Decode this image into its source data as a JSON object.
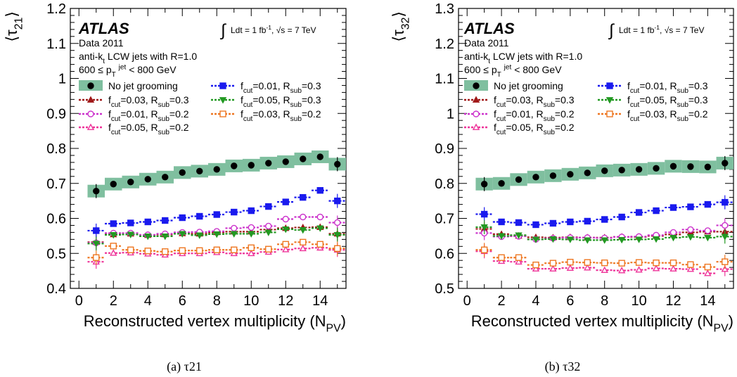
{
  "chart_data": [
    {
      "type": "line",
      "title": "",
      "caption": "(a) τ21",
      "ylabel": "⟨τ21⟩",
      "xlabel": "Reconstructed vertex multiplicity (NPV)",
      "xlim": [
        -0.5,
        15.5
      ],
      "ylim": [
        0.4,
        1.2
      ],
      "xticks": [
        "0",
        "2",
        "4",
        "6",
        "8",
        "10",
        "12",
        "14"
      ],
      "yticks": [
        "0.4",
        "0.5",
        "0.6",
        "0.7",
        "0.8",
        "0.9",
        "1",
        "1.1",
        "1.2"
      ],
      "annotations": {
        "atlas": "ATLAS",
        "data": "Data 2011",
        "jets": "anti-kt LCW jets with R=1.0",
        "pt_range": "600 ≤ pTjet < 800 GeV",
        "lumi": "∫ Ldt = 1 fb-1, √s = 7 TeV"
      },
      "legend_position": "top",
      "x": [
        1,
        2,
        3,
        4,
        5,
        6,
        7,
        8,
        9,
        10,
        11,
        12,
        13,
        14,
        15
      ],
      "series": [
        {
          "name": "No jet grooming",
          "color": "#000000",
          "marker": "filled-circle",
          "band_color": "#7fbf9f",
          "values": [
            0.678,
            0.698,
            0.704,
            0.712,
            0.718,
            0.731,
            0.735,
            0.74,
            0.75,
            0.752,
            0.758,
            0.762,
            0.77,
            0.776,
            0.755
          ]
        },
        {
          "name": "fcut=0.03, Rsub=0.3",
          "color": "#a01818",
          "marker": "filled-triangle",
          "values": [
            0.532,
            0.554,
            0.556,
            0.552,
            0.554,
            0.557,
            0.556,
            0.56,
            0.562,
            0.562,
            0.568,
            0.572,
            0.574,
            0.575,
            0.556
          ]
        },
        {
          "name": "fcut=0.01, Rsub=0.2",
          "color": "#cc33cc",
          "marker": "open-circle",
          "values": [
            0.53,
            0.558,
            0.558,
            0.553,
            0.556,
            0.56,
            0.561,
            0.563,
            0.572,
            0.574,
            0.578,
            0.598,
            0.604,
            0.604,
            0.588
          ]
        },
        {
          "name": "fcut=0.05, Rsub=0.2",
          "color": "#ee3399",
          "marker": "open-triangle",
          "values": [
            0.476,
            0.501,
            0.502,
            0.499,
            0.496,
            0.5,
            0.5,
            0.503,
            0.5,
            0.5,
            0.504,
            0.511,
            0.514,
            0.516,
            0.51
          ]
        },
        {
          "name": "fcut=0.01, Rsub=0.3",
          "color": "#1a1aee",
          "marker": "filled-square",
          "values": [
            0.565,
            0.585,
            0.587,
            0.59,
            0.594,
            0.602,
            0.606,
            0.611,
            0.618,
            0.622,
            0.634,
            0.647,
            0.66,
            0.68,
            0.65
          ]
        },
        {
          "name": "fcut=0.05, Rsub=0.3",
          "color": "#229922",
          "marker": "filled-triangle-down",
          "values": [
            0.528,
            0.553,
            0.554,
            0.549,
            0.549,
            0.556,
            0.552,
            0.555,
            0.556,
            0.556,
            0.56,
            0.569,
            0.567,
            0.572,
            0.553
          ]
        },
        {
          "name": "fcut=0.03, Rsub=0.2",
          "color": "#ee7722",
          "marker": "open-square",
          "values": [
            0.488,
            0.521,
            0.51,
            0.507,
            0.505,
            0.508,
            0.508,
            0.51,
            0.51,
            0.516,
            0.512,
            0.526,
            0.532,
            0.526,
            0.514
          ]
        }
      ]
    },
    {
      "type": "line",
      "title": "",
      "caption": "(b) τ32",
      "ylabel": "⟨τ32⟩",
      "xlabel": "Reconstructed vertex multiplicity (NPV)",
      "xlim": [
        -0.5,
        15.5
      ],
      "ylim": [
        0.5,
        1.3
      ],
      "xticks": [
        "0",
        "2",
        "4",
        "6",
        "8",
        "10",
        "12",
        "14"
      ],
      "yticks": [
        "0.5",
        "0.6",
        "0.7",
        "0.8",
        "0.9",
        "1",
        "1.1",
        "1.2",
        "1.3"
      ],
      "annotations": {
        "atlas": "ATLAS",
        "data": "Data 2011",
        "jets": "anti-kt LCW jets with R=1.0",
        "pt_range": "600 ≤ pTjet < 800 GeV",
        "lumi": "∫ Ldt = 1 fb-1, √s = 7 TeV"
      },
      "legend_position": "top",
      "x": [
        1,
        2,
        3,
        4,
        5,
        6,
        7,
        8,
        9,
        10,
        11,
        12,
        13,
        14,
        15
      ],
      "series": [
        {
          "name": "No jet grooming",
          "color": "#000000",
          "marker": "filled-circle",
          "band_color": "#7fbf9f",
          "values": [
            0.798,
            0.8,
            0.811,
            0.818,
            0.822,
            0.826,
            0.83,
            0.836,
            0.838,
            0.84,
            0.843,
            0.849,
            0.848,
            0.847,
            0.858
          ]
        },
        {
          "name": "fcut=0.03, Rsub=0.3",
          "color": "#a01818",
          "marker": "filled-triangle",
          "values": [
            0.67,
            0.655,
            0.65,
            0.646,
            0.645,
            0.646,
            0.645,
            0.645,
            0.647,
            0.647,
            0.65,
            0.654,
            0.66,
            0.662,
            0.662
          ]
        },
        {
          "name": "fcut=0.01, Rsub=0.2",
          "color": "#cc33cc",
          "marker": "open-circle",
          "values": [
            0.658,
            0.648,
            0.649,
            0.64,
            0.643,
            0.645,
            0.645,
            0.644,
            0.647,
            0.648,
            0.652,
            0.66,
            0.668,
            0.665,
            0.68
          ]
        },
        {
          "name": "fcut=0.05, Rsub=0.2",
          "color": "#ee3399",
          "marker": "open-triangle",
          "values": [
            0.606,
            0.578,
            0.576,
            0.556,
            0.556,
            0.558,
            0.559,
            0.552,
            0.551,
            0.553,
            0.557,
            0.556,
            0.555,
            0.543,
            0.555
          ]
        },
        {
          "name": "fcut=0.01, Rsub=0.3",
          "color": "#1a1aee",
          "marker": "filled-square",
          "values": [
            0.712,
            0.69,
            0.688,
            0.682,
            0.686,
            0.69,
            0.692,
            0.697,
            0.704,
            0.717,
            0.722,
            0.731,
            0.733,
            0.74,
            0.746
          ]
        },
        {
          "name": "fcut=0.05, Rsub=0.3",
          "color": "#229922",
          "marker": "filled-triangle-down",
          "values": [
            0.675,
            0.65,
            0.652,
            0.64,
            0.641,
            0.64,
            0.638,
            0.638,
            0.639,
            0.64,
            0.641,
            0.645,
            0.647,
            0.645,
            0.648
          ]
        },
        {
          "name": "fcut=0.03, Rsub=0.2",
          "color": "#ee7722",
          "marker": "open-square",
          "values": [
            0.61,
            0.588,
            0.588,
            0.567,
            0.572,
            0.575,
            0.574,
            0.573,
            0.572,
            0.574,
            0.573,
            0.573,
            0.568,
            0.561,
            0.576
          ]
        }
      ]
    }
  ]
}
